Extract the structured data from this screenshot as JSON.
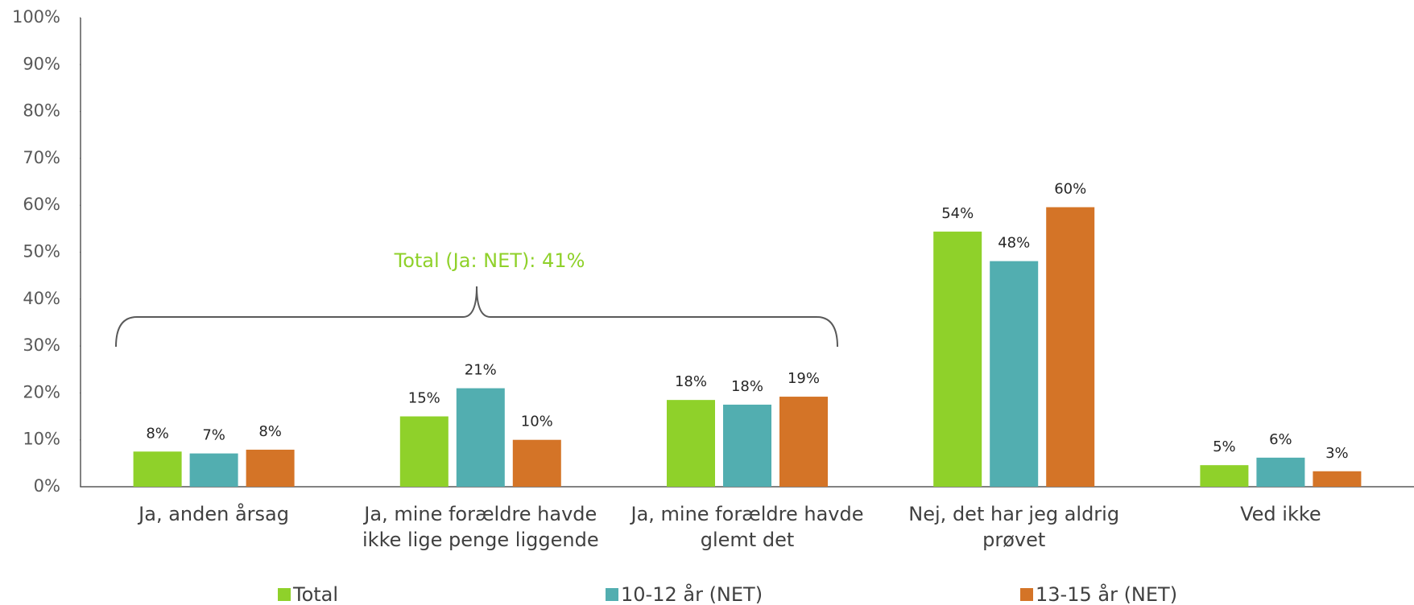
{
  "chart_data": {
    "type": "bar",
    "categories": [
      "Ja, anden årsag",
      "Ja, mine forældre havde\nikke lige penge liggende",
      "Ja, mine forældre havde\nglemt det",
      "Nej, det har jeg aldrig\nprøvet",
      "Ved ikke"
    ],
    "series": [
      {
        "name": "Total",
        "color": "#8fd12a",
        "values": [
          7.5,
          15.0,
          18.5,
          54.4,
          4.6
        ],
        "value_labels": [
          "8%",
          "15%",
          "18%",
          "54%",
          "5%"
        ]
      },
      {
        "name": "10-12 år (NET)",
        "color": "#52aeb0",
        "values": [
          7.1,
          21.0,
          17.5,
          48.1,
          6.2
        ],
        "value_labels": [
          "7%",
          "21%",
          "18%",
          "48%",
          "6%"
        ]
      },
      {
        "name": "13-15 år (NET)",
        "color": "#d47427",
        "values": [
          7.9,
          10.0,
          19.2,
          59.6,
          3.3
        ],
        "value_labels": [
          "8%",
          "10%",
          "19%",
          "60%",
          "3%"
        ]
      }
    ],
    "ylim": [
      0,
      100
    ],
    "yticks": [
      {
        "value": 0,
        "label": "0%"
      },
      {
        "value": 10,
        "label": "10%"
      },
      {
        "value": 20,
        "label": "20%"
      },
      {
        "value": 30,
        "label": "30%"
      },
      {
        "value": 40,
        "label": "40%"
      },
      {
        "value": 50,
        "label": "50%"
      },
      {
        "value": 60,
        "label": "60%"
      },
      {
        "value": 70,
        "label": "70%"
      },
      {
        "value": 80,
        "label": "80%"
      },
      {
        "value": 90,
        "label": "90%"
      },
      {
        "value": 100,
        "label": "100%"
      }
    ],
    "grid": false,
    "legend": "bottom",
    "annotation": "Total (Ja: NET): 41%"
  }
}
